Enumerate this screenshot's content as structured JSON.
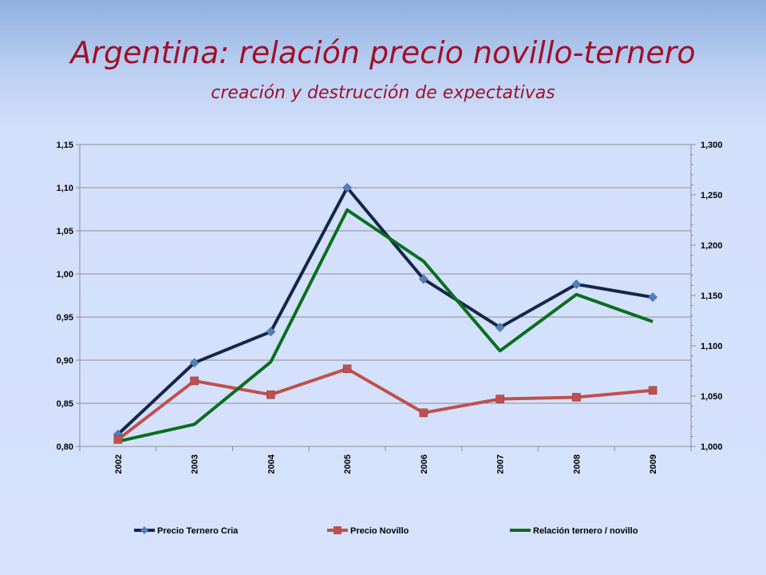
{
  "page": {
    "title": "Argentina: relación precio novillo-ternero",
    "subtitle": "creación y destrucción de expectativas"
  },
  "colors": {
    "title": "#a0102a",
    "ternero": "#16254a",
    "ternero_marker": "#4f81bd",
    "novillo": "#c0504d",
    "relacion": "#0b6e1f"
  },
  "chart_data": {
    "type": "line",
    "categories": [
      "2002",
      "2003",
      "2004",
      "2005",
      "2006",
      "2007",
      "2008",
      "2009"
    ],
    "y_left": {
      "min": 0.8,
      "max": 1.15,
      "step": 0.05,
      "labels": [
        "0,80",
        "0,85",
        "0,90",
        "0,95",
        "1,00",
        "1,05",
        "1,10",
        "1,15"
      ]
    },
    "y_right": {
      "min": 1.0,
      "max": 1.3,
      "step": 0.05,
      "labels": [
        "1,000",
        "1,050",
        "1,100",
        "1,150",
        "1,200",
        "1,250",
        "1,300"
      ]
    },
    "grid": true,
    "legend_position": "bottom",
    "series": [
      {
        "name": "Precio Ternero Cria",
        "axis": "left",
        "marker": "diamond",
        "values": [
          0.814,
          0.897,
          0.933,
          1.1,
          0.994,
          0.938,
          0.988,
          0.973
        ]
      },
      {
        "name": "Precio Novillo",
        "axis": "left",
        "marker": "square",
        "values": [
          0.808,
          0.876,
          0.86,
          0.89,
          0.839,
          0.855,
          0.857,
          0.865
        ]
      },
      {
        "name": "Relación ternero / novillo",
        "axis": "right",
        "marker": "none",
        "values": [
          1.005,
          1.022,
          1.084,
          1.235,
          1.184,
          1.095,
          1.151,
          1.124
        ]
      }
    ]
  }
}
